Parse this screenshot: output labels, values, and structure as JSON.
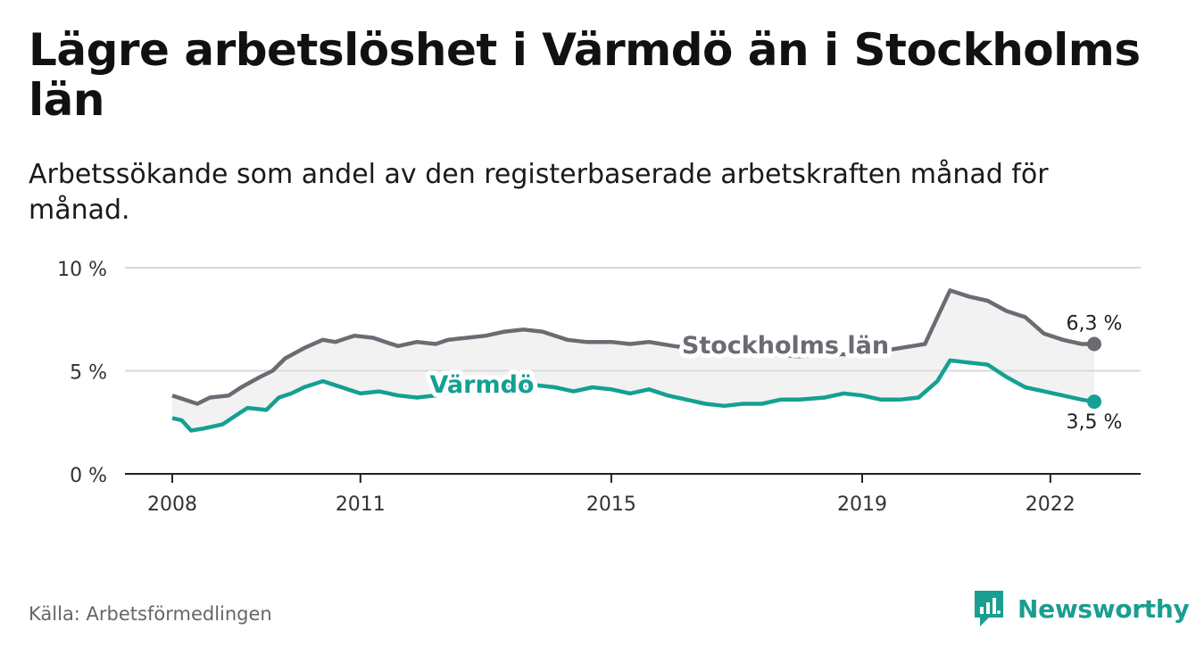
{
  "title": "Lägre arbetslöshet i Värmdö än i Stockholms län",
  "subtitle": "Arbetssökande som andel av den registerbaserade arbetskraften månad för månad.",
  "source": "Källa: Arbetsförmedlingen",
  "brand": {
    "name": "Newsworthy",
    "icon": "newsworthy-logo-icon"
  },
  "colors": {
    "stockholm": "#6b6b73",
    "varmdo": "#14a092",
    "band": "#f2f2f2",
    "grid": "#d9d9d9",
    "axis": "#222222"
  },
  "chart_data": {
    "type": "line",
    "ylim": [
      0,
      10
    ],
    "yticks": [
      {
        "value": 0,
        "label": "0 %"
      },
      {
        "value": 5,
        "label": "5 %"
      },
      {
        "value": 10,
        "label": "10 %"
      }
    ],
    "xlim": [
      2008,
      2022.7
    ],
    "xticks": [
      {
        "value": 2008,
        "label": "2008"
      },
      {
        "value": 2011,
        "label": "2011"
      },
      {
        "value": 2015,
        "label": "2015"
      },
      {
        "value": 2019,
        "label": "2019"
      },
      {
        "value": 2022,
        "label": "2022"
      }
    ],
    "series": [
      {
        "name": "Stockholms län",
        "label": "Stockholms län",
        "end_label": "6,3 %",
        "points": [
          [
            2008,
            3.8
          ],
          [
            2008.4,
            3.4
          ],
          [
            2008.6,
            3.7
          ],
          [
            2008.9,
            3.8
          ],
          [
            2009.1,
            4.2
          ],
          [
            2009.4,
            4.7
          ],
          [
            2009.6,
            5.0
          ],
          [
            2009.8,
            5.6
          ],
          [
            2010.1,
            6.1
          ],
          [
            2010.4,
            6.5
          ],
          [
            2010.6,
            6.4
          ],
          [
            2010.9,
            6.7
          ],
          [
            2011.2,
            6.6
          ],
          [
            2011.4,
            6.4
          ],
          [
            2011.6,
            6.2
          ],
          [
            2011.9,
            6.4
          ],
          [
            2012.2,
            6.3
          ],
          [
            2012.4,
            6.5
          ],
          [
            2012.7,
            6.6
          ],
          [
            2013.0,
            6.7
          ],
          [
            2013.3,
            6.9
          ],
          [
            2013.6,
            7.0
          ],
          [
            2013.9,
            6.9
          ],
          [
            2014.3,
            6.5
          ],
          [
            2014.6,
            6.4
          ],
          [
            2015.0,
            6.4
          ],
          [
            2015.3,
            6.3
          ],
          [
            2015.6,
            6.4
          ],
          [
            2016.0,
            6.2
          ],
          [
            2016.5,
            6.0
          ],
          [
            2017.0,
            5.8
          ],
          [
            2017.5,
            5.8
          ],
          [
            2018.0,
            5.7
          ],
          [
            2018.5,
            5.8
          ],
          [
            2019.0,
            5.8
          ],
          [
            2019.4,
            6.0
          ],
          [
            2019.8,
            6.2
          ],
          [
            2020.0,
            6.3
          ],
          [
            2020.2,
            7.6
          ],
          [
            2020.4,
            8.9
          ],
          [
            2020.7,
            8.6
          ],
          [
            2021.0,
            8.4
          ],
          [
            2021.3,
            7.9
          ],
          [
            2021.6,
            7.6
          ],
          [
            2021.9,
            6.8
          ],
          [
            2022.2,
            6.5
          ],
          [
            2022.5,
            6.3
          ],
          [
            2022.7,
            6.3
          ]
        ]
      },
      {
        "name": "Värmdö",
        "label": "Värmdö",
        "end_label": "3,5 %",
        "points": [
          [
            2008,
            2.7
          ],
          [
            2008.15,
            2.6
          ],
          [
            2008.3,
            2.1
          ],
          [
            2008.5,
            2.2
          ],
          [
            2008.8,
            2.4
          ],
          [
            2009.0,
            2.8
          ],
          [
            2009.2,
            3.2
          ],
          [
            2009.5,
            3.1
          ],
          [
            2009.7,
            3.7
          ],
          [
            2009.9,
            3.9
          ],
          [
            2010.1,
            4.2
          ],
          [
            2010.4,
            4.5
          ],
          [
            2010.6,
            4.3
          ],
          [
            2010.8,
            4.1
          ],
          [
            2011.0,
            3.9
          ],
          [
            2011.3,
            4.0
          ],
          [
            2011.6,
            3.8
          ],
          [
            2011.9,
            3.7
          ],
          [
            2012.2,
            3.8
          ],
          [
            2012.5,
            4.0
          ],
          [
            2012.8,
            4.1
          ],
          [
            2013.1,
            4.2
          ],
          [
            2013.5,
            4.2
          ],
          [
            2013.8,
            4.3
          ],
          [
            2014.1,
            4.2
          ],
          [
            2014.4,
            4.0
          ],
          [
            2014.7,
            4.2
          ],
          [
            2015.0,
            4.1
          ],
          [
            2015.3,
            3.9
          ],
          [
            2015.6,
            4.1
          ],
          [
            2015.9,
            3.8
          ],
          [
            2016.2,
            3.6
          ],
          [
            2016.5,
            3.4
          ],
          [
            2016.8,
            3.3
          ],
          [
            2017.1,
            3.4
          ],
          [
            2017.4,
            3.4
          ],
          [
            2017.7,
            3.6
          ],
          [
            2018.0,
            3.6
          ],
          [
            2018.4,
            3.7
          ],
          [
            2018.7,
            3.9
          ],
          [
            2019.0,
            3.8
          ],
          [
            2019.3,
            3.6
          ],
          [
            2019.6,
            3.6
          ],
          [
            2019.9,
            3.7
          ],
          [
            2020.2,
            4.5
          ],
          [
            2020.4,
            5.5
          ],
          [
            2020.7,
            5.4
          ],
          [
            2021.0,
            5.3
          ],
          [
            2021.3,
            4.7
          ],
          [
            2021.6,
            4.2
          ],
          [
            2021.9,
            4.0
          ],
          [
            2022.2,
            3.8
          ],
          [
            2022.5,
            3.6
          ],
          [
            2022.7,
            3.5
          ]
        ]
      }
    ]
  }
}
